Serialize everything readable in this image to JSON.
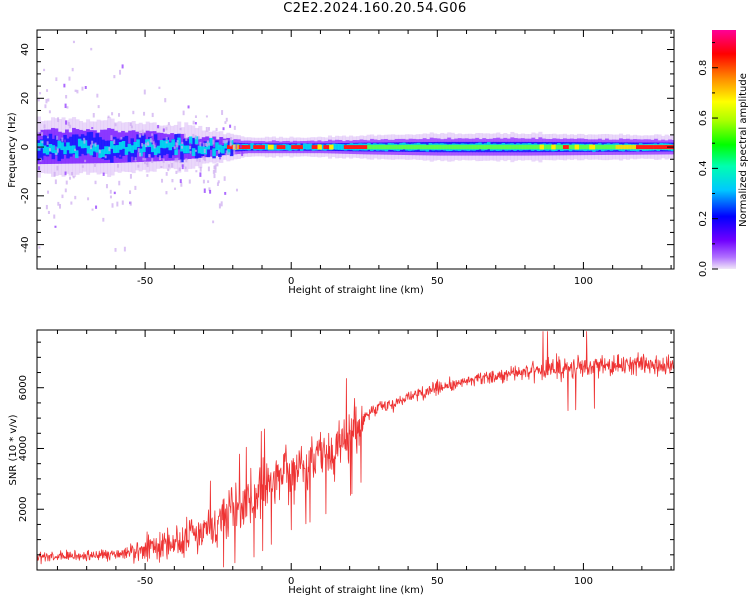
{
  "title": "C2E2.2024.160.20.54.G06",
  "chart_data": [
    {
      "type": "heatmap",
      "name": "spectrogram",
      "xlabel": "Height of straight line (km)",
      "ylabel": "Frequency (Hz)",
      "xlim": [
        -87,
        131
      ],
      "ylim": [
        -50,
        48
      ],
      "xticks": [
        -50,
        0,
        50,
        100
      ],
      "yticks": [
        -40,
        -20,
        0,
        20,
        40
      ],
      "colorbar": {
        "label": "Normalized spectral amplitude",
        "range": [
          0,
          0.95
        ],
        "ticks": [
          "0.0",
          "0.2",
          "0.4",
          "0.6",
          "0.8"
        ],
        "tick_values": [
          0,
          0.2,
          0.4,
          0.6,
          0.8
        ],
        "colors": [
          "#f0e6f8",
          "#a000ff",
          "#0000ff",
          "#00e5ff",
          "#00ff00",
          "#ffff00",
          "#ff7f00",
          "#ff0000",
          "#ff0096"
        ]
      },
      "band_halfwidth_by_height": {
        "x": [
          -87,
          -60,
          -40,
          -25,
          -15,
          0,
          10,
          25,
          50,
          80,
          131
        ],
        "halfwidth_hz": [
          7,
          6.5,
          5.5,
          3.5,
          2.5,
          2.5,
          2.5,
          3,
          3.5,
          3.5,
          3
        ]
      }
    },
    {
      "type": "line",
      "name": "snr",
      "xlabel": "Height of straight line (km)",
      "ylabel": "SNR (10 * v/v)",
      "xlim": [
        -87,
        131
      ],
      "ylim": [
        0,
        7900
      ],
      "xticks": [
        -50,
        0,
        50,
        100
      ],
      "yticks": [
        2000,
        4000,
        6000
      ],
      "color": "#ee3333",
      "trend": {
        "x": [
          -87,
          -60,
          -50,
          -40,
          -30,
          -20,
          -10,
          0,
          10,
          20,
          25,
          30,
          40,
          50,
          60,
          70,
          80,
          90,
          100,
          110,
          120,
          131
        ],
        "y": [
          400,
          500,
          700,
          900,
          1300,
          1900,
          2600,
          3300,
          3700,
          4400,
          5000,
          5300,
          5700,
          6000,
          6200,
          6400,
          6500,
          6600,
          6700,
          6750,
          6800,
          6650
        ]
      }
    }
  ]
}
